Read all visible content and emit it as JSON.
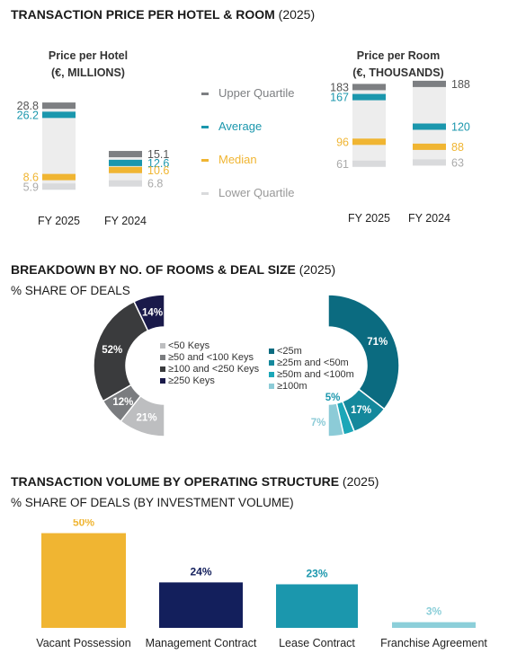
{
  "section1": {
    "title_bold": "TRANSACTION PRICE PER HOTEL & ROOM",
    "title_suffix": " (2025)"
  },
  "section2": {
    "title_bold": "BREAKDOWN BY NO. OF ROOMS & DEAL SIZE",
    "title_suffix": " (2025)",
    "subtitle": "% SHARE OF DEALS"
  },
  "section3": {
    "title_bold": "TRANSACTION VOLUME BY OPERATING STRUCTURE",
    "title_suffix": " (2025)",
    "subtitle": "% SHARE OF DEALS (BY INVESTMENT VOLUME)"
  },
  "colors": {
    "upper": "#7d7f82",
    "average": "#1b97ad",
    "median": "#f0b532",
    "lower": "#d9dadc",
    "range_fill": "#ededed"
  },
  "chart_data": [
    {
      "type": "range",
      "id": "price_per_hotel",
      "title_line1": "Price per Hotel",
      "title_line2": "(€, MILLIONS)",
      "categories": [
        "FY 2025",
        "FY 2024"
      ],
      "series": [
        {
          "name": "Upper Quartile",
          "values": [
            28.8,
            15.1
          ]
        },
        {
          "name": "Average",
          "values": [
            26.2,
            12.6
          ]
        },
        {
          "name": "Median",
          "values": [
            8.6,
            10.6
          ]
        },
        {
          "name": "Lower Quartile",
          "values": [
            5.9,
            6.8
          ]
        }
      ],
      "labels": {
        "upper": [
          "28.8",
          "15.1"
        ],
        "average": [
          "26.2",
          "12.6"
        ],
        "median": [
          "8.6",
          "10.6"
        ],
        "lower": [
          "5.9",
          "6.8"
        ]
      },
      "ylim": [
        0,
        32
      ]
    },
    {
      "type": "range",
      "id": "price_per_room",
      "title_line1": "Price per Room",
      "title_line2": "(€, THOUSANDS)",
      "categories": [
        "FY 2025",
        "FY 2024"
      ],
      "series": [
        {
          "name": "Upper Quartile",
          "values": [
            183,
            188
          ]
        },
        {
          "name": "Average",
          "values": [
            167,
            120
          ]
        },
        {
          "name": "Median",
          "values": [
            96,
            88
          ]
        },
        {
          "name": "Lower Quartile",
          "values": [
            61,
            63
          ]
        }
      ],
      "labels": {
        "upper": [
          "183",
          "188"
        ],
        "average": [
          "167",
          "120"
        ],
        "median": [
          "96",
          "88"
        ],
        "lower": [
          "61",
          "63"
        ]
      },
      "ylim": [
        0,
        200
      ]
    },
    {
      "type": "pie",
      "id": "rooms_breakdown",
      "style": "half-donut-left",
      "categories": [
        "<50 Keys",
        "≥50 and <100 Keys",
        "≥100 and <250 Keys",
        "≥250 Keys"
      ],
      "values": [
        21,
        12,
        52,
        14
      ],
      "labels": [
        "21%",
        "12%",
        "52%",
        "14%"
      ],
      "colors": [
        "#bdbec0",
        "#7a7c7f",
        "#3a3b3d",
        "#1a1a4a"
      ]
    },
    {
      "type": "pie",
      "id": "deal_size_breakdown",
      "style": "half-donut-right",
      "categories": [
        "<25m",
        "≥25m and <50m",
        "≥50m and <100m",
        "≥100m"
      ],
      "values": [
        71,
        17,
        5,
        7
      ],
      "labels": [
        "71%",
        "17%",
        "5%",
        "7%"
      ],
      "colors": [
        "#0b6b80",
        "#14889c",
        "#1ba7b8",
        "#8ccbd7"
      ]
    },
    {
      "type": "bar",
      "id": "operating_structure",
      "categories": [
        "Vacant Possession",
        "Management Contract",
        "Lease Contract",
        "Franchise Agreement"
      ],
      "values": [
        50,
        24,
        23,
        3
      ],
      "labels": [
        "50%",
        "24%",
        "23%",
        "3%"
      ],
      "colors": [
        "#f0b532",
        "#131f5c",
        "#1b97ad",
        "#8ccfd9"
      ],
      "ylim": [
        0,
        55
      ]
    }
  ]
}
